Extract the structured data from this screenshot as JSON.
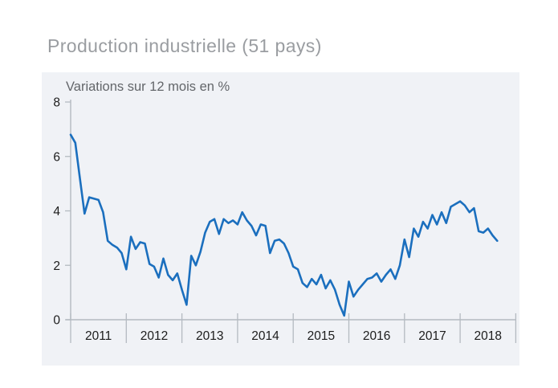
{
  "title": "Production industrielle (51 pays)",
  "chart_data": {
    "type": "line",
    "title": "Production industrielle (51 pays)",
    "subtitle": "Variations sur 12 mois en %",
    "ylabel": "Variations sur 12 mois en %",
    "xlabel": "",
    "x_start": "2011-01",
    "x_end": "2018-09",
    "frequency": "monthly",
    "x_tick_labels": [
      "2011",
      "2012",
      "2013",
      "2014",
      "2015",
      "2016",
      "2017",
      "2018"
    ],
    "yticks": [
      8,
      6,
      4,
      2,
      0
    ],
    "ylim": [
      0,
      8
    ],
    "grid": false,
    "legend": null,
    "line_color": "#1b6fbe",
    "plot_bg_color": "#f0f2f6",
    "axis_color": "#b4bac1",
    "tick_label_color": "#1c1c1c",
    "series": [
      {
        "name": "Production industrielle (51 pays), variation sur 12 mois en %",
        "values": [
          6.8,
          6.5,
          5.2,
          3.9,
          4.5,
          4.45,
          4.4,
          3.95,
          2.9,
          2.75,
          2.65,
          2.45,
          1.85,
          3.05,
          2.6,
          2.85,
          2.8,
          2.05,
          1.95,
          1.55,
          2.25,
          1.65,
          1.45,
          1.7,
          1.1,
          0.55,
          2.35,
          2.0,
          2.5,
          3.2,
          3.6,
          3.7,
          3.15,
          3.7,
          3.55,
          3.65,
          3.5,
          3.95,
          3.65,
          3.45,
          3.1,
          3.5,
          3.45,
          2.45,
          2.9,
          2.95,
          2.8,
          2.45,
          1.95,
          1.85,
          1.35,
          1.2,
          1.5,
          1.3,
          1.65,
          1.15,
          1.45,
          1.1,
          0.55,
          0.15,
          1.4,
          0.85,
          1.1,
          1.3,
          1.5,
          1.55,
          1.7,
          1.4,
          1.65,
          1.85,
          1.5,
          2.0,
          2.95,
          2.3,
          3.35,
          3.05,
          3.6,
          3.35,
          3.85,
          3.5,
          3.95,
          3.55,
          4.15,
          4.25,
          4.35,
          4.2,
          3.95,
          4.1,
          3.25,
          3.2,
          3.35,
          3.1,
          2.9
        ]
      }
    ]
  }
}
